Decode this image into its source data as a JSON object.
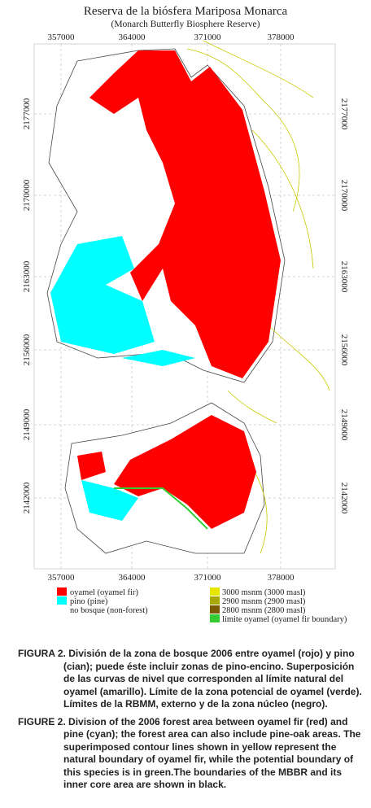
{
  "title": "Reserva de la biósfera Mariposa Monarca",
  "subtitle": "(Monarch Butterfly Biosphere Reserve)",
  "x_labels": [
    "357000",
    "364000",
    "371000",
    "378000"
  ],
  "y_labels": [
    "2177000",
    "2170000",
    "2163000",
    "2156000",
    "2149000",
    "2142000"
  ],
  "legend_left": [
    {
      "color": "#ff0000",
      "label": "oyamel (oyamel fir)"
    },
    {
      "color": "#00ffff",
      "label": "pino (pine)"
    },
    {
      "color": "#ffffff",
      "label": "no bosque (non-forest)"
    }
  ],
  "legend_right": [
    {
      "color": "#e6e600",
      "label": "3000 msnm (3000 masl)"
    },
    {
      "color": "#a8a800",
      "label": "2900 msnm (2900 masl)"
    },
    {
      "color": "#7a5a00",
      "label": "2800 msnm (2800 masl)"
    },
    {
      "color": "#33cc33",
      "label": "límite oyamel (oyamel fir boundary)"
    }
  ],
  "captions": [
    {
      "label": "FIGURA 2.",
      "text": "División de la zona de bosque 2006 entre oyamel (rojo) y pino (cian); puede éste incluir zonas de pino-encino. Superposición de las curvas de nivel que corresponden al límite natural del oyamel (amarillo). Límite de la zona potencial de oyamel (verde). Límites de la RBMM, externo y de la zona núcleo (negro)."
    },
    {
      "label": "FIGURE 2.",
      "text": "Division of the 2006 forest area between oyamel fir (red) and pine (cyan); the forest area can also include pine-oak areas. The superimposed contour lines shown in yellow represent the natural boundary of oyamel fir, while the potential boundary of this species is in green.The boundaries of the MBBR and its inner core area are shown in black."
    }
  ]
}
